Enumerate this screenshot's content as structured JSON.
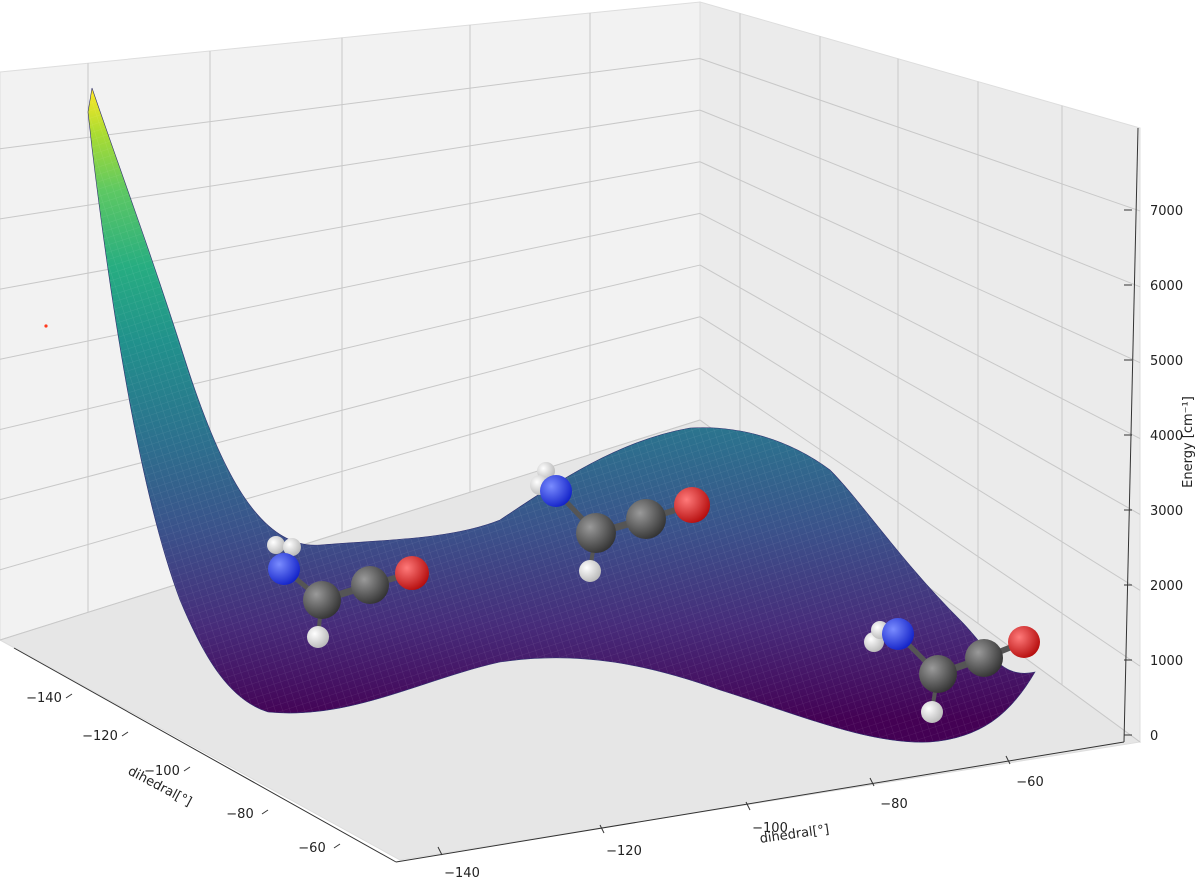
{
  "chart_data": {
    "type": "surface",
    "title": "",
    "xlabel": "dihedral[°]",
    "ylabel": "dihedral[°]",
    "zlabel": "Energy [cm⁻¹]",
    "x_ticks": [
      "−140",
      "−120",
      "−100",
      "−80",
      "−60"
    ],
    "y_ticks": [
      "−140",
      "−120",
      "−100",
      "−80",
      "−60"
    ],
    "z_ticks": [
      "0",
      "1000",
      "2000",
      "3000",
      "4000",
      "5000",
      "6000",
      "7000"
    ],
    "x_range": [
      -150,
      -55
    ],
    "y_range": [
      -150,
      -55
    ],
    "z_range": [
      0,
      8000
    ],
    "colormap": "viridis",
    "grid": true,
    "surface_samples": [
      {
        "x": -150,
        "y": -150,
        "z": 7800
      },
      {
        "x": -140,
        "y": -140,
        "z": 2500
      },
      {
        "x": -120,
        "y": -120,
        "z": 800
      },
      {
        "x": -100,
        "y": -100,
        "z": 1300
      },
      {
        "x": -80,
        "y": -80,
        "z": 600
      },
      {
        "x": -60,
        "y": -60,
        "z": 300
      },
      {
        "x": -150,
        "y": -55,
        "z": 4000
      },
      {
        "x": -55,
        "y": -150,
        "z": 4100
      }
    ],
    "molecule_annotations": [
      {
        "name": "conformer-left",
        "atoms": [
          "N",
          "H",
          "H",
          "C",
          "C",
          "O",
          "H"
        ]
      },
      {
        "name": "conformer-middle",
        "atoms": [
          "N",
          "H",
          "H",
          "C",
          "C",
          "O",
          "H"
        ]
      },
      {
        "name": "conformer-right",
        "atoms": [
          "N",
          "H",
          "H",
          "C",
          "C",
          "O",
          "H"
        ]
      }
    ],
    "atom_colors": {
      "N": "#1a2fe0",
      "O": "#d41313",
      "C": "#4a4a4a",
      "H": "#e8e8e8"
    }
  }
}
